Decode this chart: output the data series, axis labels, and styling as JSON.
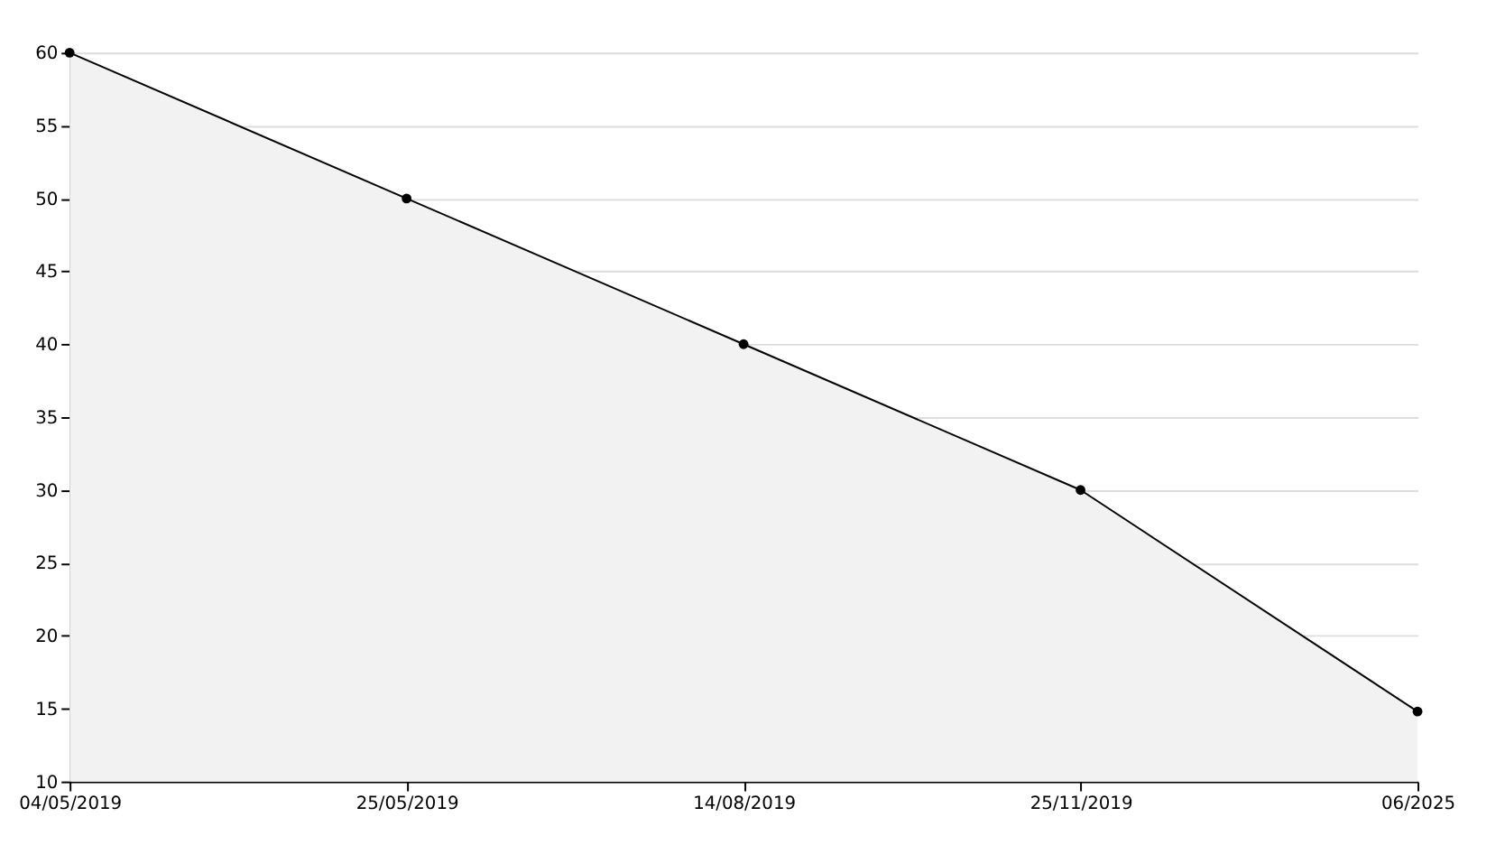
{
  "chart_data": {
    "type": "area",
    "categories": [
      "04/05/2019",
      "25/05/2019",
      "14/08/2019",
      "25/11/2019",
      "06/2025"
    ],
    "series": [
      {
        "color": "#000000",
        "values": [
          60,
          50,
          40,
          30,
          14.8
        ]
      }
    ],
    "ylim": [
      10,
      60
    ],
    "yticks": [
      10,
      15,
      20,
      25,
      30,
      35,
      40,
      45,
      50,
      55,
      60
    ],
    "grid": "y",
    "marker": "circle",
    "line_style": "solid"
  }
}
